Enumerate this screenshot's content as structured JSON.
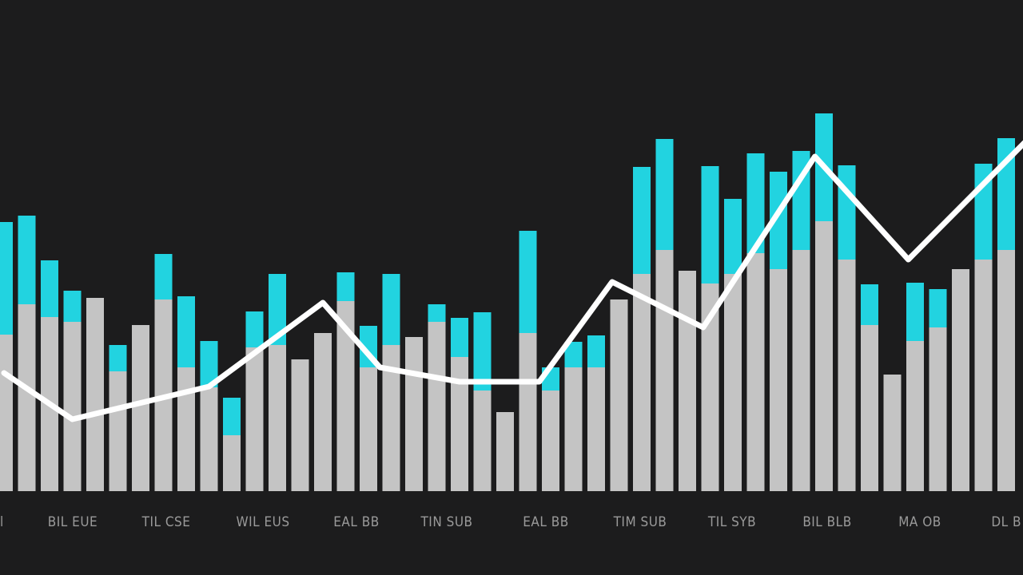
{
  "colors": {
    "background": "#1c1c1d",
    "base": "#c4c4c4",
    "top": "#22d3e0",
    "line": "#ffffff",
    "tick_label": "#9a9a9a"
  },
  "chart_data": {
    "type": "bar",
    "stacked": true,
    "grid": false,
    "legend": "none",
    "ylim": [
      0,
      500
    ],
    "tick_labels": [
      "BIL EUE",
      "TIL CSE",
      "WIL EUS",
      "EAL BB",
      "TIN SUB",
      "EAL BB",
      "TIM SUB",
      "TIL SYB",
      "BIL BLB",
      "MA OB",
      "DL B"
    ],
    "categories": [
      1,
      2,
      3,
      4,
      5,
      6,
      7,
      8,
      9,
      10,
      11,
      12,
      13,
      14,
      15,
      16,
      17,
      18,
      19,
      20,
      21,
      22,
      23,
      24,
      25,
      26,
      27,
      28,
      29,
      30,
      31,
      32,
      33,
      34,
      35,
      36,
      37,
      38,
      39,
      40,
      41,
      42,
      43,
      44,
      45
    ],
    "series": [
      {
        "values": [
          196,
          234,
          218,
          212,
          242,
          150,
          208,
          240,
          155,
          130,
          70,
          180,
          183,
          165,
          198,
          238,
          155,
          183,
          193,
          212,
          168,
          126,
          99,
          198,
          126,
          155,
          155,
          240,
          272,
          302,
          276,
          260,
          272,
          298,
          278,
          302,
          338,
          290,
          208,
          146,
          188,
          205,
          278,
          290,
          302
        ]
      },
      {
        "values": [
          141,
          111,
          71,
          39,
          0,
          33,
          0,
          57,
          89,
          58,
          47,
          45,
          89,
          0,
          0,
          36,
          52,
          89,
          0,
          22,
          49,
          98,
          0,
          128,
          29,
          32,
          40,
          0,
          134,
          139,
          0,
          147,
          94,
          125,
          122,
          124,
          135,
          118,
          51,
          0,
          73,
          48,
          0,
          120,
          140
        ]
      }
    ],
    "line": {
      "x": [
        1,
        4,
        10,
        15,
        17.5,
        21,
        24.5,
        27.7,
        31.7,
        36.6,
        40.7,
        46
      ],
      "y": [
        148,
        90,
        131,
        236,
        155,
        137,
        137,
        262,
        205,
        419,
        290,
        442
      ]
    }
  }
}
